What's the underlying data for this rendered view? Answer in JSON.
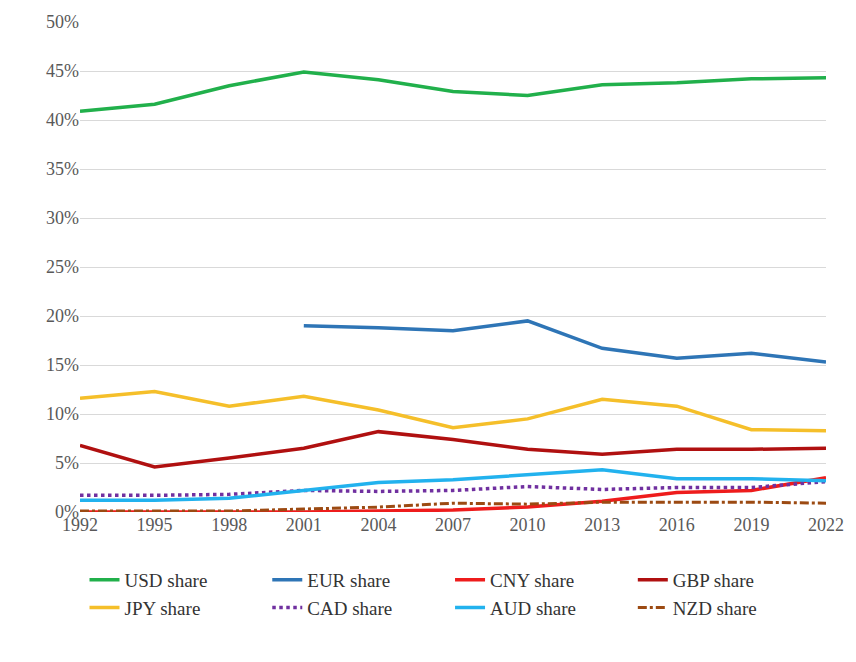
{
  "chart_data": {
    "type": "line",
    "categories": [
      "1992",
      "1995",
      "1998",
      "2001",
      "2004",
      "2007",
      "2010",
      "2013",
      "2016",
      "2019",
      "2022"
    ],
    "series": [
      {
        "name": "USD share",
        "color": "#21b04b",
        "line_style": "solid",
        "values": [
          40.9,
          41.6,
          43.5,
          44.9,
          44.1,
          42.9,
          42.5,
          43.6,
          43.8,
          44.2,
          44.3
        ]
      },
      {
        "name": "EUR share",
        "color": "#2e75b6",
        "line_style": "solid",
        "values": [
          null,
          null,
          null,
          19.0,
          18.8,
          18.5,
          19.5,
          16.7,
          15.7,
          16.2,
          15.3
        ]
      },
      {
        "name": "CNY share",
        "color": "#ee1c1c",
        "line_style": "solid",
        "values": [
          0.0,
          0.0,
          0.0,
          0.0,
          0.1,
          0.2,
          0.5,
          1.1,
          2.0,
          2.2,
          3.5
        ]
      },
      {
        "name": "GBP share",
        "color": "#b01010",
        "line_style": "solid",
        "values": [
          6.8,
          4.6,
          5.5,
          6.5,
          8.2,
          7.4,
          6.4,
          5.9,
          6.4,
          6.4,
          6.5
        ]
      },
      {
        "name": "JPY share",
        "color": "#f5bf2a",
        "line_style": "solid",
        "values": [
          11.6,
          12.3,
          10.8,
          11.8,
          10.4,
          8.6,
          9.5,
          11.5,
          10.8,
          8.4,
          8.3
        ]
      },
      {
        "name": "CAD share",
        "color": "#7030a0",
        "line_style": "dotted",
        "values": [
          1.7,
          1.7,
          1.8,
          2.2,
          2.1,
          2.2,
          2.6,
          2.3,
          2.5,
          2.5,
          3.1
        ]
      },
      {
        "name": "AUD share",
        "color": "#22b2ee",
        "line_style": "solid",
        "values": [
          1.2,
          1.2,
          1.4,
          2.2,
          3.0,
          3.3,
          3.8,
          4.3,
          3.4,
          3.4,
          3.2
        ]
      },
      {
        "name": "NZD share",
        "color": "#9c4a12",
        "line_style": "dashdot",
        "values": [
          0.1,
          0.1,
          0.1,
          0.3,
          0.5,
          0.9,
          0.8,
          1.0,
          1.0,
          1.0,
          0.9
        ]
      }
    ],
    "ylim": [
      0,
      50
    ],
    "yticks": [
      {
        "value": 0,
        "label": "0%"
      },
      {
        "value": 5,
        "label": "5%"
      },
      {
        "value": 10,
        "label": "10%"
      },
      {
        "value": 15,
        "label": "15%"
      },
      {
        "value": 20,
        "label": "20%"
      },
      {
        "value": 25,
        "label": "25%"
      },
      {
        "value": 30,
        "label": "30%"
      },
      {
        "value": 35,
        "label": "35%"
      },
      {
        "value": 40,
        "label": "40%"
      },
      {
        "value": 45,
        "label": "45%"
      },
      {
        "value": 50,
        "label": "50%"
      }
    ],
    "grid": true,
    "legend": "bottom"
  }
}
